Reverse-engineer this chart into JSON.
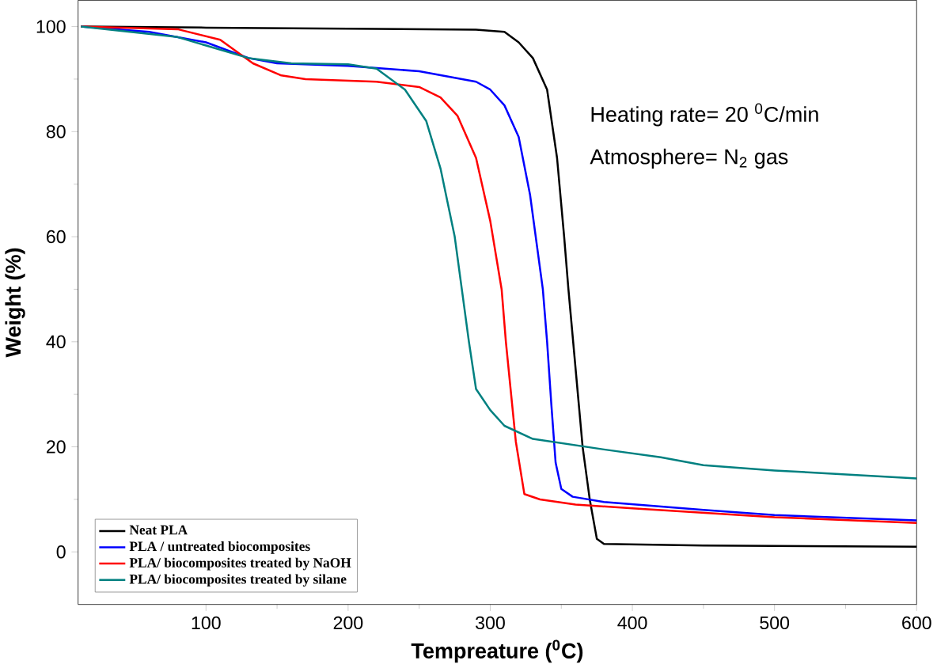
{
  "chart_data": {
    "type": "line",
    "xlabel": "Tempreature ($^{0}$C)",
    "ylabel": "Weight (%)",
    "annotations": [
      "Heating rate= 20 $^{0}$C/min",
      "Atmosphere= N$_{2}$ gas"
    ],
    "xlim": [
      10,
      600
    ],
    "ylim": [
      -10,
      105
    ],
    "xticks": [
      100,
      200,
      300,
      400,
      500,
      600
    ],
    "yticks": [
      0,
      20,
      40,
      60,
      80,
      100
    ],
    "legend": "bottom left",
    "grid": false,
    "marker": "none",
    "line_style": "solid",
    "series": [
      {
        "name": "Neat PLA",
        "color": "#000000",
        "x": [
          12,
          100,
          200,
          290,
          310,
          320,
          330,
          340,
          347,
          352,
          355,
          360,
          365,
          370,
          375,
          380,
          450,
          600
        ],
        "values": [
          100,
          99.8,
          99.6,
          99.4,
          99,
          97,
          94,
          88,
          75,
          60,
          50,
          35,
          20,
          10,
          2.5,
          1.5,
          1.2,
          1
        ]
      },
      {
        "name": "PLA / untreated biocomposites",
        "color": "#0000ff",
        "x": [
          12,
          60,
          100,
          130,
          150,
          200,
          250,
          290,
          300,
          310,
          320,
          328,
          333,
          337,
          340,
          343,
          346,
          350,
          358,
          380,
          450,
          500,
          600
        ],
        "values": [
          100,
          99,
          97,
          94,
          93,
          92.5,
          91.5,
          89.5,
          88,
          85,
          79,
          68,
          58,
          50,
          40,
          28,
          17,
          12,
          10.5,
          9.5,
          8,
          7,
          6
        ]
      },
      {
        "name": "PLA/ biocomposites treated by NaOH",
        "color": "#ff0000",
        "x": [
          12,
          80,
          110,
          133,
          153,
          170,
          220,
          250,
          265,
          277,
          290,
          300,
          308,
          311,
          318,
          324,
          335,
          360,
          400,
          500,
          600
        ],
        "values": [
          100,
          99.5,
          97.5,
          93,
          90.7,
          90,
          89.5,
          88.5,
          86.5,
          83,
          75,
          63,
          50,
          40,
          21,
          11,
          10,
          9,
          8.3,
          6.6,
          5.5
        ]
      },
      {
        "name": "PLA/ biocomposites treated by silane",
        "color": "#008080",
        "x": [
          12,
          80,
          130,
          160,
          200,
          220,
          240,
          255,
          265,
          275,
          280,
          285,
          290,
          300,
          310,
          330,
          380,
          420,
          450,
          500,
          600
        ],
        "values": [
          100,
          98,
          94,
          93,
          92.8,
          92,
          88,
          82,
          73,
          60,
          50,
          40,
          31,
          27,
          24,
          21.5,
          19.5,
          18,
          16.5,
          15.5,
          14
        ]
      }
    ]
  }
}
